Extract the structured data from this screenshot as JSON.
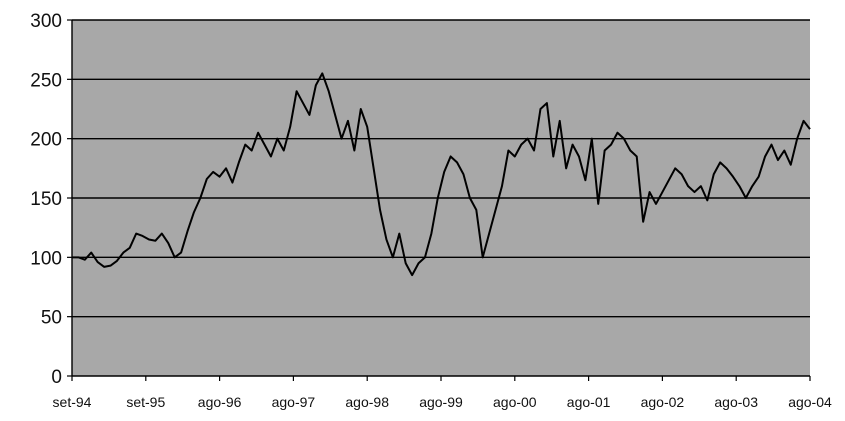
{
  "chart_data": {
    "type": "line",
    "title": "",
    "xlabel": "",
    "ylabel": "",
    "ylim": [
      0,
      300
    ],
    "yticks": [
      0,
      50,
      100,
      150,
      200,
      250,
      300
    ],
    "grid": true,
    "legend": "none",
    "plot_background": "#a8a8a8",
    "line_color": "#000000",
    "x_tick_labels": [
      "set-94",
      "set-95",
      "ago-96",
      "ago-97",
      "ago-98",
      "ago-99",
      "ago-00",
      "ago-01",
      "ago-02",
      "ago-03",
      "ago-04"
    ],
    "series": [
      {
        "values": [
          100,
          100,
          98,
          104,
          96,
          92,
          93,
          97,
          104,
          108,
          120,
          118,
          115,
          114,
          120,
          112,
          100,
          104,
          122,
          138,
          150,
          166,
          172,
          168,
          175,
          163,
          180,
          195,
          190,
          205,
          195,
          185,
          200,
          190,
          210,
          240,
          230,
          220,
          245,
          255,
          240,
          220,
          200,
          215,
          190,
          225,
          210,
          175,
          140,
          115,
          100,
          120,
          95,
          85,
          95,
          100,
          120,
          150,
          172,
          185,
          180,
          170,
          150,
          140,
          100,
          120,
          140,
          160,
          190,
          185,
          195,
          200,
          190,
          225,
          230,
          185,
          215,
          175,
          195,
          185,
          165,
          200,
          145,
          190,
          195,
          205,
          200,
          190,
          185,
          130,
          155,
          145,
          155,
          165,
          175,
          170,
          160,
          155,
          160,
          148,
          170,
          180,
          175,
          168,
          160,
          150,
          160,
          168,
          185,
          195,
          182,
          190,
          178,
          200,
          215,
          208
        ]
      }
    ]
  }
}
